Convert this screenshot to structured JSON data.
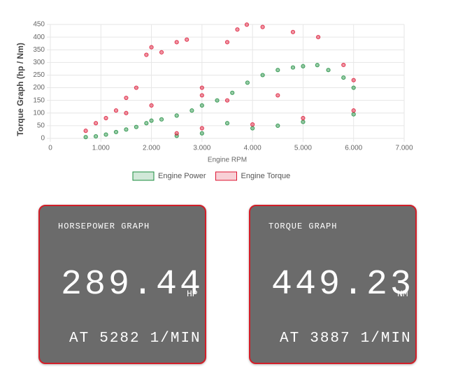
{
  "chart_data": {
    "type": "scatter",
    "y_label": "Torque Graph (hp / Nm)",
    "x_label": "Engine RPM",
    "xlim": [
      0,
      7000
    ],
    "xticks": [
      0,
      {
        "value": 1000,
        "label": "1.000"
      },
      {
        "value": 2000,
        "label": "2.000"
      },
      {
        "value": 3000,
        "label": "3.000"
      },
      {
        "value": 4000,
        "label": "4.000"
      },
      {
        "value": 5000,
        "label": "5.000"
      },
      {
        "value": 6000,
        "label": "6.000"
      },
      {
        "value": 7000,
        "label": "7.000"
      }
    ],
    "ylim": [
      0,
      450
    ],
    "yticks": [
      0,
      50,
      100,
      150,
      200,
      250,
      300,
      350,
      400,
      450
    ],
    "grid": true,
    "legend": "bottom",
    "series": [
      {
        "name": "Engine Power",
        "color": "#1a8c3c",
        "x": [
          700,
          900,
          1100,
          1300,
          1500,
          1700,
          1900,
          2000,
          2200,
          2500,
          2800,
          3000,
          3300,
          3600,
          3900,
          4200,
          4500,
          4800,
          5000,
          5282,
          5500,
          5800,
          6000,
          2500,
          3000,
          4000,
          5000,
          6000,
          3500,
          4500
        ],
        "values": [
          5,
          8,
          15,
          25,
          35,
          45,
          60,
          70,
          75,
          90,
          110,
          130,
          150,
          180,
          220,
          250,
          270,
          280,
          285,
          289.44,
          270,
          240,
          200,
          10,
          20,
          40,
          65,
          95,
          60,
          50
        ]
      },
      {
        "name": "Engine Torque",
        "color": "#dc1432",
        "x": [
          700,
          900,
          1100,
          1300,
          1500,
          1700,
          1900,
          2000,
          2200,
          2500,
          2700,
          3000,
          3500,
          3700,
          3887,
          4200,
          4800,
          5300,
          5800,
          6000,
          2500,
          3000,
          4000,
          5000,
          6000,
          3000,
          3500,
          4500,
          1500,
          2000
        ],
        "values": [
          30,
          60,
          80,
          110,
          160,
          200,
          330,
          360,
          340,
          380,
          390,
          200,
          380,
          430,
          449.23,
          440,
          420,
          400,
          290,
          230,
          20,
          40,
          55,
          80,
          110,
          170,
          150,
          170,
          100,
          130
        ]
      }
    ]
  },
  "cards": [
    {
      "title": "HORSEPOWER GRAPH",
      "value": 289.44,
      "unit": "HP",
      "prefix": "AT",
      "rpm": 5282,
      "rpm_unit": "1/MIN"
    },
    {
      "title": "TORQUE GRAPH",
      "value": 449.23,
      "unit": "NM",
      "prefix": "AT",
      "rpm": 3887,
      "rpm_unit": "1/MIN"
    }
  ]
}
